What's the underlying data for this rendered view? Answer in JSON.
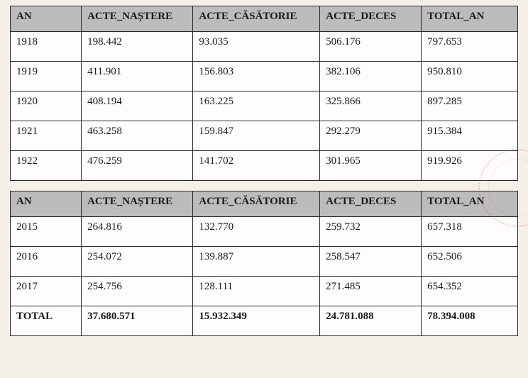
{
  "table1": {
    "columns": [
      "AN",
      "ACTE_NAȘTERE",
      "ACTE_CĂSĂTORIE",
      "ACTE_DECES",
      "TOTAL_AN"
    ],
    "rows": [
      [
        "1918",
        "198.442",
        "93.035",
        "506.176",
        "797.653"
      ],
      [
        "1919",
        "411.901",
        "156.803",
        "382.106",
        "950.810"
      ],
      [
        "1920",
        "408.194",
        "163.225",
        "325.866",
        "897.285"
      ],
      [
        "1921",
        "463.258",
        "159.847",
        "292.279",
        "915.384"
      ],
      [
        "1922",
        "476.259",
        "141.702",
        "301.965",
        "919.926"
      ]
    ],
    "header_bg": "#bcbcbc",
    "border_color": "#2a2a2a",
    "cell_bg": "#fefdfb",
    "col_widths_pct": [
      14,
      22,
      25,
      20,
      19
    ],
    "font_family": "Times New Roman",
    "header_fontsize_pt": 11,
    "cell_fontsize_pt": 11
  },
  "table2": {
    "columns": [
      "AN",
      "ACTE_NAȘTERE",
      "ACTE_CĂSĂTORIE",
      "ACTE_DECES",
      "TOTAL_AN"
    ],
    "rows": [
      [
        "2015",
        "264.816",
        "132.770",
        "259.732",
        "657.318"
      ],
      [
        "2016",
        "254.072",
        "139.887",
        "258.547",
        "652.506"
      ],
      [
        "2017",
        "254.756",
        "128.111",
        "271.485",
        "654.352"
      ]
    ],
    "total_row": [
      "TOTAL",
      "37.680.571",
      "15.932.349",
      "24.781.088",
      "78.394.008"
    ],
    "header_bg": "#bcbcbc",
    "border_color": "#2a2a2a",
    "cell_bg": "#fefdfb",
    "col_widths_pct": [
      14,
      22,
      25,
      20,
      19
    ],
    "font_family": "Times New Roman",
    "header_fontsize_pt": 11,
    "cell_fontsize_pt": 11
  },
  "page": {
    "background": "#f4f0e8",
    "stamp_color": "#c82828"
  }
}
